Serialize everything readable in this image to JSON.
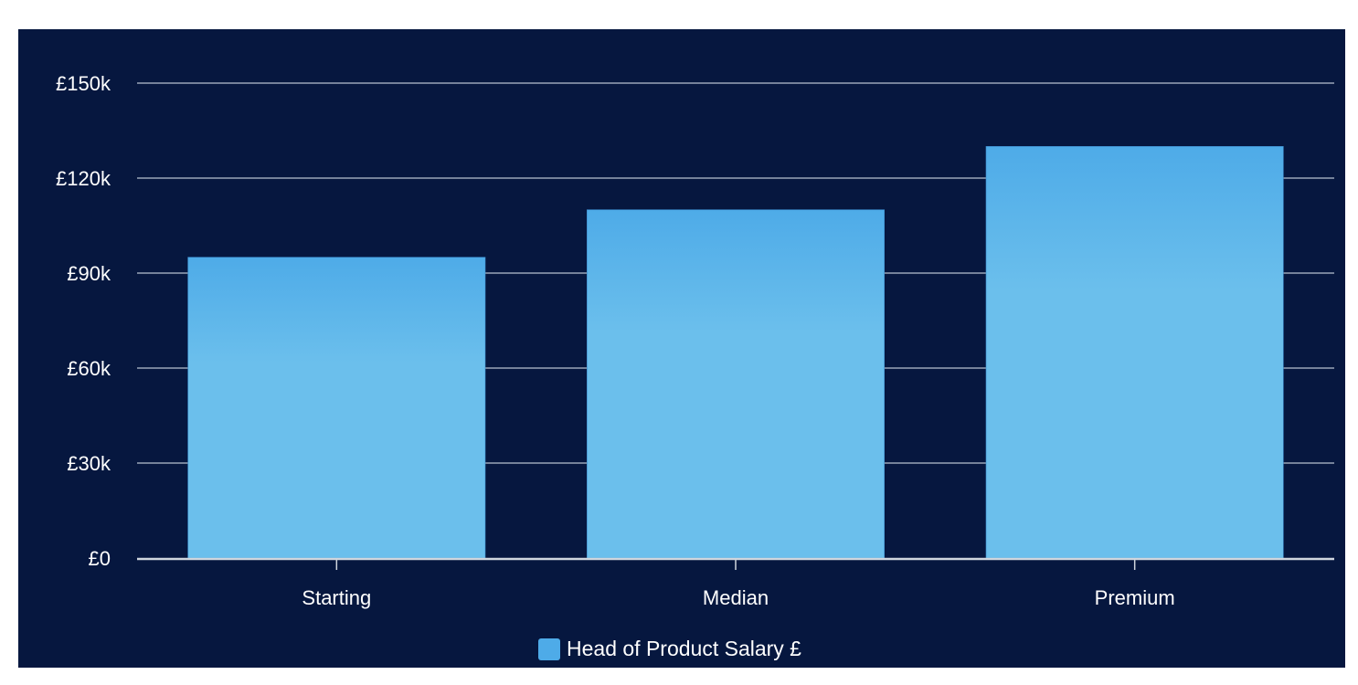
{
  "chart_data": {
    "type": "bar",
    "title": "",
    "xlabel": "",
    "ylabel": "",
    "categories": [
      "Starting",
      "Median",
      "Premium"
    ],
    "series": [
      {
        "name": "Head of Product Salary £",
        "values": [
          95000,
          110000,
          130000
        ],
        "color": "#4eabe8"
      }
    ],
    "ylim": [
      0,
      150000
    ],
    "yticks": [
      0,
      30000,
      60000,
      90000,
      120000,
      150000
    ],
    "ytick_labels": [
      "£0",
      "£30k",
      "£60k",
      "£90k",
      "£120k",
      "£150k"
    ],
    "grid": true,
    "legend_position": "bottom-center",
    "colors": {
      "background": "#06173f",
      "bar_top": "#4eabe8",
      "bar_bottom": "#6bbfec",
      "grid": "#9aa6b8",
      "text": "#ffffff"
    }
  },
  "legend": {
    "label": "Head of Product Salary £"
  }
}
